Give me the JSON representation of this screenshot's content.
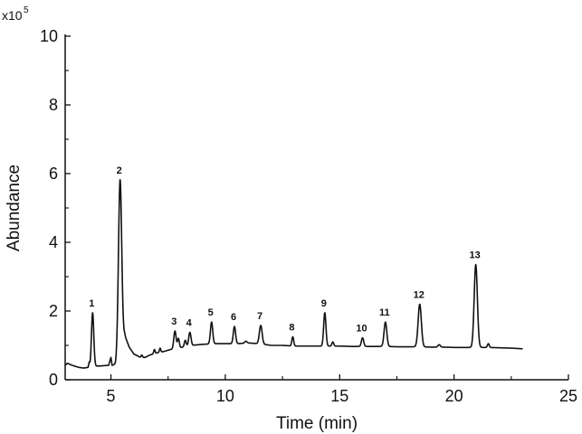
{
  "chart_data": {
    "type": "line",
    "title": "",
    "xlabel": "Time (min)",
    "ylabel": "Abundance",
    "y_multiplier": {
      "base": "x10",
      "exponent": "5"
    },
    "xlim": [
      3,
      25
    ],
    "ylim": [
      0,
      10
    ],
    "x_ticks": [
      5,
      10,
      15,
      20,
      25
    ],
    "y_ticks": [
      0,
      2,
      4,
      6,
      8,
      10
    ],
    "grid": false,
    "legend": "none",
    "line_color": "#111111",
    "baseline": [
      [
        3.0,
        0.42
      ],
      [
        3.1,
        0.48
      ],
      [
        3.3,
        0.42
      ],
      [
        3.6,
        0.36
      ],
      [
        3.8,
        0.34
      ],
      [
        4.0,
        0.36
      ],
      [
        4.05,
        0.5
      ],
      [
        4.1,
        0.38
      ],
      [
        4.3,
        0.4
      ],
      [
        4.5,
        0.4
      ],
      [
        4.9,
        0.42
      ],
      [
        5.0,
        0.65
      ],
      [
        5.05,
        0.42
      ],
      [
        5.2,
        0.45
      ],
      [
        5.6,
        1.3
      ],
      [
        5.8,
        0.95
      ],
      [
        6.0,
        0.75
      ],
      [
        6.3,
        0.65
      ],
      [
        6.5,
        0.65
      ],
      [
        6.7,
        0.72
      ],
      [
        7.0,
        0.78
      ],
      [
        7.3,
        0.82
      ],
      [
        7.6,
        0.88
      ],
      [
        8.0,
        0.93
      ],
      [
        8.5,
        1.0
      ],
      [
        9.0,
        1.03
      ],
      [
        9.5,
        1.05
      ],
      [
        10.0,
        1.05
      ],
      [
        10.5,
        1.05
      ],
      [
        11.0,
        1.07
      ],
      [
        11.5,
        1.05
      ],
      [
        12.0,
        1.0
      ],
      [
        12.5,
        1.0
      ],
      [
        13.0,
        0.98
      ],
      [
        13.5,
        0.98
      ],
      [
        14.0,
        0.98
      ],
      [
        14.5,
        0.98
      ],
      [
        15.0,
        0.98
      ],
      [
        15.5,
        0.97
      ],
      [
        16.0,
        0.97
      ],
      [
        16.5,
        0.97
      ],
      [
        17.0,
        0.97
      ],
      [
        17.5,
        0.96
      ],
      [
        18.0,
        0.96
      ],
      [
        18.5,
        0.96
      ],
      [
        19.0,
        0.95
      ],
      [
        19.5,
        0.95
      ],
      [
        20.0,
        0.94
      ],
      [
        20.5,
        0.94
      ],
      [
        21.0,
        0.94
      ],
      [
        21.5,
        0.94
      ],
      [
        22.0,
        0.93
      ],
      [
        22.5,
        0.92
      ],
      [
        23.0,
        0.9
      ]
    ],
    "peaks": [
      {
        "label": "1",
        "x": 4.2,
        "y": 1.95,
        "width": 0.05
      },
      {
        "label": "2",
        "x": 5.4,
        "y": 5.82,
        "width": 0.07
      },
      {
        "label": "3",
        "x": 7.8,
        "y": 1.42,
        "width": 0.05
      },
      {
        "label": "4",
        "x": 8.45,
        "y": 1.38,
        "width": 0.05
      },
      {
        "label": "5",
        "x": 9.4,
        "y": 1.68,
        "width": 0.05
      },
      {
        "label": "6",
        "x": 10.4,
        "y": 1.55,
        "width": 0.05
      },
      {
        "label": "7",
        "x": 11.55,
        "y": 1.58,
        "width": 0.06
      },
      {
        "label": "8",
        "x": 12.95,
        "y": 1.25,
        "width": 0.04
      },
      {
        "label": "9",
        "x": 14.35,
        "y": 1.95,
        "width": 0.05
      },
      {
        "label": "10",
        "x": 16.0,
        "y": 1.22,
        "width": 0.05
      },
      {
        "label": "11",
        "x": 17.0,
        "y": 1.68,
        "width": 0.06
      },
      {
        "label": "12",
        "x": 18.5,
        "y": 2.2,
        "width": 0.07
      },
      {
        "label": "13",
        "x": 20.95,
        "y": 3.35,
        "width": 0.07
      }
    ],
    "minor_peaks": [
      {
        "x": 6.35,
        "y": 0.72,
        "width": 0.03
      },
      {
        "x": 6.9,
        "y": 0.88,
        "width": 0.03
      },
      {
        "x": 7.15,
        "y": 0.92,
        "width": 0.03
      },
      {
        "x": 7.95,
        "y": 1.2,
        "width": 0.04
      },
      {
        "x": 8.25,
        "y": 1.15,
        "width": 0.04
      },
      {
        "x": 10.9,
        "y": 1.12,
        "width": 0.05
      },
      {
        "x": 14.7,
        "y": 1.1,
        "width": 0.04
      },
      {
        "x": 19.35,
        "y": 1.02,
        "width": 0.05
      },
      {
        "x": 21.5,
        "y": 1.05,
        "width": 0.04
      }
    ]
  }
}
